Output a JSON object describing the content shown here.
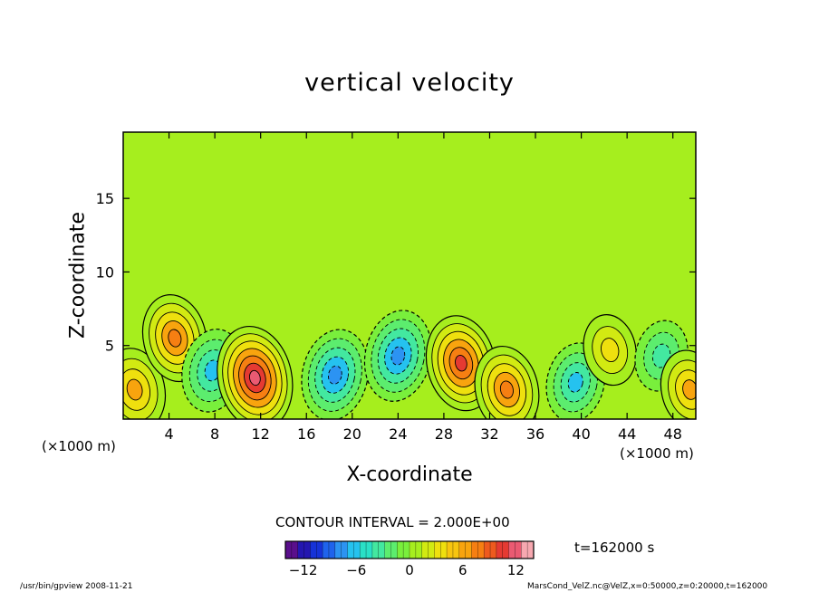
{
  "chart_data": {
    "type": "heatmap",
    "title": "vertical velocity",
    "xlabel": "X-coordinate",
    "ylabel": "Z-coordinate",
    "x_unit_label": "(×1000 m)",
    "y_unit_label": "(×1000 m)",
    "xlim": [
      0,
      50
    ],
    "ylim": [
      0,
      19.5
    ],
    "xticks": [
      4,
      8,
      12,
      16,
      20,
      24,
      28,
      32,
      36,
      40,
      44,
      48
    ],
    "yticks": [
      5,
      10,
      15
    ],
    "contour_interval_text": "CONTOUR INTERVAL = 2.000E+00",
    "time_text": "t=162000 s",
    "colorbar": {
      "min": -14,
      "max": 14,
      "ticks": [
        -12,
        -6,
        0,
        6,
        12
      ],
      "colors": [
        "#5a0f8c",
        "#2416b0",
        "#1633d8",
        "#1f63ec",
        "#2c93f2",
        "#25c2ef",
        "#2ae0c6",
        "#43e8a0",
        "#5ced6e",
        "#79ef3c",
        "#a6ee1e",
        "#d2ea12",
        "#efe00e",
        "#f7c50f",
        "#f8a40e",
        "#f67f12",
        "#ee5a1e",
        "#e53a32",
        "#ea5a72",
        "#f7a8b0"
      ]
    },
    "cells": [
      {
        "x": 1,
        "z": 2,
        "w": 6
      },
      {
        "x": 4.5,
        "z": 5.5,
        "w": 7
      },
      {
        "x": 7.8,
        "z": 3.3,
        "w": -6
      },
      {
        "x": 11.5,
        "z": 2.8,
        "w": 11
      },
      {
        "x": 18.5,
        "z": 3,
        "w": -8
      },
      {
        "x": 24,
        "z": 4.3,
        "w": -8
      },
      {
        "x": 29.5,
        "z": 3.8,
        "w": 9
      },
      {
        "x": 33.5,
        "z": 2,
        "w": 7
      },
      {
        "x": 39.5,
        "z": 2.5,
        "w": -5
      },
      {
        "x": 42.5,
        "z": 4.7,
        "w": 3
      },
      {
        "x": 47,
        "z": 4.3,
        "w": -3
      },
      {
        "x": 49.5,
        "z": 2,
        "w": 5
      }
    ]
  },
  "footer": {
    "left": "/usr/bin/gpview  2008-11-21",
    "right": "MarsCond_VelZ.nc@VelZ,x=0:50000,z=0:20000,t=162000"
  }
}
